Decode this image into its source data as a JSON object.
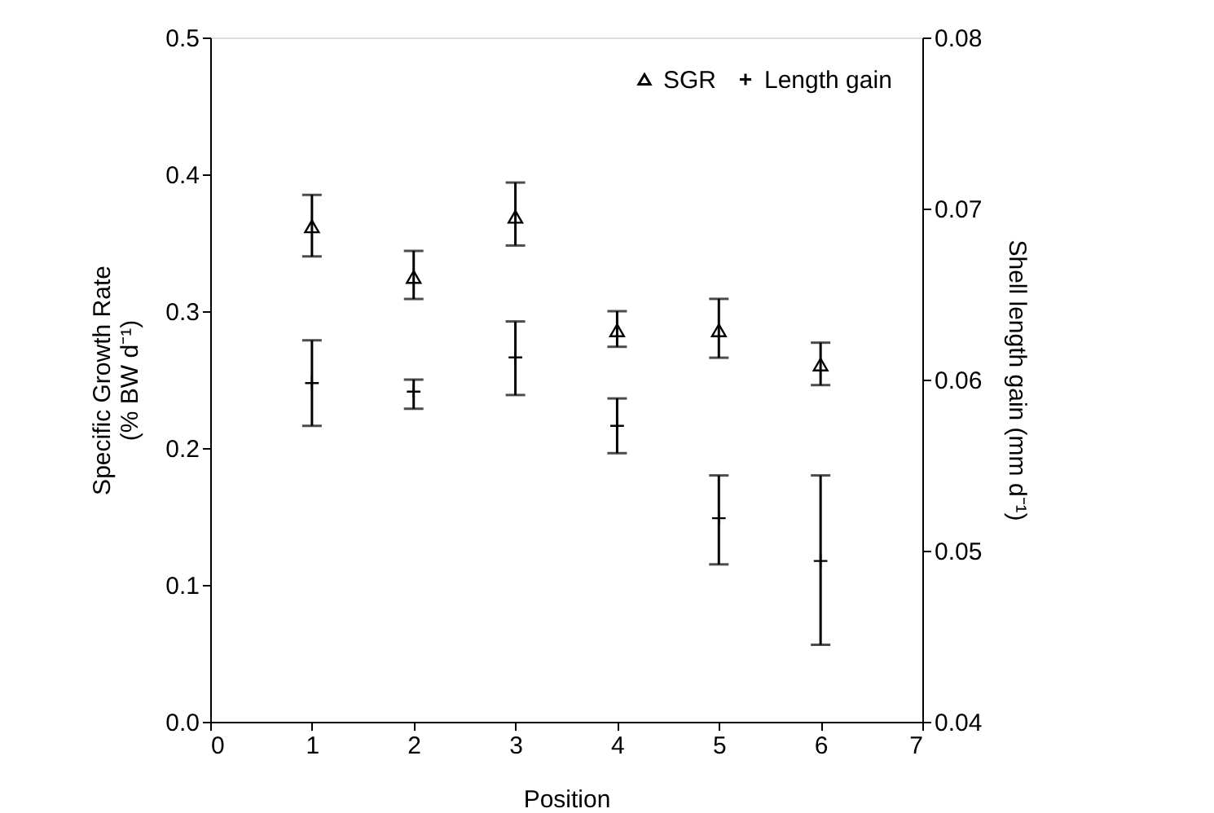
{
  "chart_data": {
    "type": "scatter",
    "xlabel": "Position",
    "ylabel": "Specific Growth Rate\n(% BW d⁻¹)",
    "y2label": "Shell length gain (mm d⁻¹)",
    "x": [
      1,
      2,
      3,
      4,
      5,
      6
    ],
    "series": [
      {
        "name": "SGR",
        "color": "#000000",
        "marker": "triangle",
        "values": [
          0.362,
          0.325,
          0.369,
          0.286,
          0.286,
          0.261
        ],
        "errors": [
          [
            0.34,
            0.385
          ],
          [
            0.309,
            0.344
          ],
          [
            0.348,
            0.394
          ],
          [
            0.274,
            0.3
          ],
          [
            0.266,
            0.309
          ],
          [
            0.246,
            0.277
          ]
        ]
      },
      {
        "name": "Length gain",
        "color": "#000000",
        "marker": "cross",
        "axis": "y2",
        "values": [
          0.0598,
          0.0593,
          0.0613,
          0.0573,
          0.0519,
          0.0494
        ],
        "errors": [
          [
            0.0573,
            0.0623
          ],
          [
            0.0583,
            0.06
          ],
          [
            0.0591,
            0.0634
          ],
          [
            0.0557,
            0.0589
          ],
          [
            0.0492,
            0.0544
          ],
          [
            0.0445,
            0.0544
          ]
        ]
      }
    ],
    "xlim": [
      0,
      7
    ],
    "xticks": [
      0,
      1,
      2,
      3,
      4,
      5,
      6,
      7
    ],
    "ylim": [
      0,
      0.5
    ],
    "yticks": [
      {
        "value": 0,
        "label": "0.0"
      },
      0.1,
      0.2,
      0.3,
      0.4,
      0.5
    ],
    "y2lim": [
      0.04,
      0.08
    ],
    "y2ticks": [
      0.04,
      0.05,
      0.06,
      0.07,
      0.08
    ],
    "grid": false,
    "legend": "top right"
  }
}
